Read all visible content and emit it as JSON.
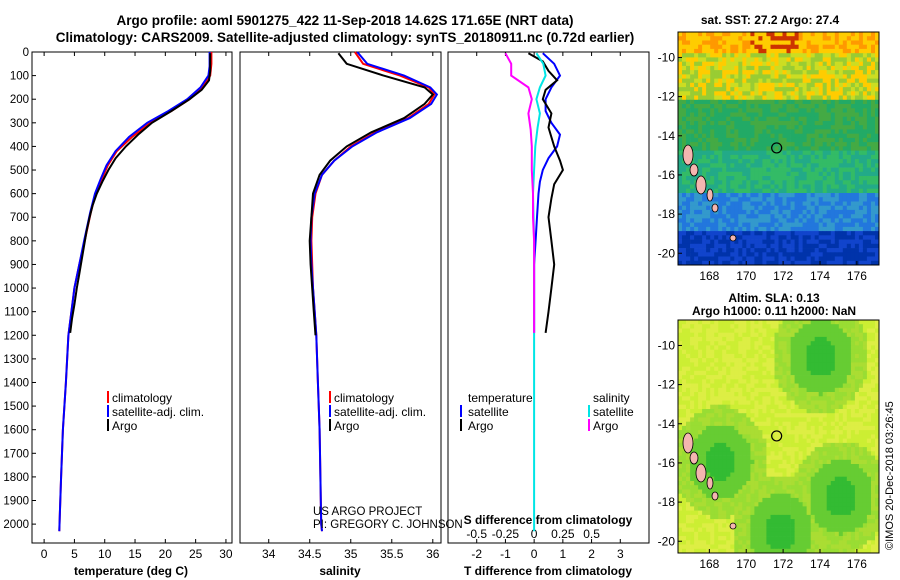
{
  "title": {
    "line1": "Argo profile: aoml 5901275_422 11-Sep-2018 14.62S 171.65E (NRT data)",
    "line2": "Climatology: CARS2009. Satellite-adjusted climatology: synTS_20180911.nc (0.72d earlier)"
  },
  "colors": {
    "climatology": "#ff0000",
    "satellite": "#0000ff",
    "argo": "#000000",
    "sat_salinity": "#00e5e5",
    "argo_salinity": "#ff00ff"
  },
  "chart_data": [
    {
      "type": "line",
      "title": "",
      "xlabel": "temperature (deg C)",
      "ylabel": "",
      "xlim": [
        -2,
        31
      ],
      "ylim": [
        2080,
        0
      ],
      "xticks": [
        0,
        5,
        10,
        15,
        20,
        25,
        30
      ],
      "yticks": [
        0,
        100,
        200,
        300,
        400,
        500,
        600,
        700,
        800,
        900,
        1000,
        1100,
        1200,
        1300,
        1400,
        1500,
        1600,
        1700,
        1800,
        1900,
        2000
      ],
      "legend": {
        "entries": [
          "climatology",
          "satellite-adj. clim.",
          "Argo"
        ],
        "placement": "lower-center"
      },
      "series": [
        {
          "name": "climatology",
          "color": "#ff0000",
          "points": [
            [
              27.6,
              0
            ],
            [
              27.6,
              50
            ],
            [
              27.4,
              100
            ],
            [
              26,
              150
            ],
            [
              24,
              200
            ],
            [
              21,
              250
            ],
            [
              17.5,
              300
            ],
            [
              14.5,
              360
            ],
            [
              12,
              420
            ],
            [
              10.5,
              480
            ],
            [
              9.5,
              540
            ],
            [
              8.5,
              600
            ],
            [
              7.7,
              680
            ],
            [
              6.7,
              800
            ],
            [
              5.8,
              900
            ],
            [
              5,
              1000
            ],
            [
              4.5,
              1100
            ],
            [
              4,
              1200
            ],
            [
              3.6,
              1400
            ],
            [
              3.1,
              1600
            ],
            [
              2.8,
              1800
            ],
            [
              2.6,
              1950
            ],
            [
              2.5,
              2030
            ]
          ]
        },
        {
          "name": "satellite-adj. clim.",
          "color": "#0000ff",
          "points": [
            [
              27.3,
              0
            ],
            [
              27.3,
              60
            ],
            [
              27.1,
              100
            ],
            [
              25.8,
              150
            ],
            [
              23.6,
              200
            ],
            [
              20.5,
              250
            ],
            [
              17,
              300
            ],
            [
              14,
              360
            ],
            [
              11.8,
              420
            ],
            [
              10.3,
              480
            ],
            [
              9.3,
              540
            ],
            [
              8.4,
              600
            ],
            [
              7.6,
              680
            ],
            [
              6.6,
              800
            ],
            [
              5.8,
              900
            ],
            [
              5,
              1000
            ],
            [
              4.5,
              1100
            ],
            [
              4,
              1200
            ],
            [
              3.6,
              1400
            ],
            [
              3.1,
              1600
            ],
            [
              2.8,
              1800
            ],
            [
              2.6,
              1950
            ],
            [
              2.5,
              2030
            ]
          ]
        },
        {
          "name": "Argo",
          "color": "#000000",
          "points": [
            [
              27.4,
              5
            ],
            [
              27.4,
              80
            ],
            [
              27.2,
              120
            ],
            [
              26,
              160
            ],
            [
              24,
              200
            ],
            [
              21,
              250
            ],
            [
              17.8,
              300
            ],
            [
              15.5,
              350
            ],
            [
              13.5,
              400
            ],
            [
              11.8,
              450
            ],
            [
              10.6,
              500
            ],
            [
              9.6,
              550
            ],
            [
              8.7,
              600
            ],
            [
              8,
              650
            ],
            [
              7.5,
              700
            ],
            [
              7,
              760
            ],
            [
              6.6,
              820
            ],
            [
              6.2,
              880
            ],
            [
              5.8,
              940
            ],
            [
              5.4,
              1000
            ],
            [
              5,
              1070
            ],
            [
              4.6,
              1130
            ],
            [
              4.3,
              1190
            ]
          ]
        }
      ]
    },
    {
      "type": "line",
      "xlabel": "salinity",
      "xlim": [
        33.65,
        36.1
      ],
      "ylim": [
        2080,
        0
      ],
      "xticks": [
        34,
        34.5,
        35,
        35.5,
        36
      ],
      "tick_labels": [
        "34",
        "34.5",
        "35",
        "35.5",
        "36"
      ],
      "legend": {
        "entries": [
          "climatology",
          "satellite-adj. clim.",
          "Argo"
        ],
        "placement": "lower-center"
      },
      "series": [
        {
          "name": "climatology",
          "color": "#ff0000",
          "points": [
            [
              35.05,
              0
            ],
            [
              35.15,
              50
            ],
            [
              35.6,
              100
            ],
            [
              35.95,
              150
            ],
            [
              36.02,
              180
            ],
            [
              35.95,
              220
            ],
            [
              35.7,
              280
            ],
            [
              35.3,
              340
            ],
            [
              35,
              400
            ],
            [
              34.8,
              460
            ],
            [
              34.65,
              520
            ],
            [
              34.57,
              600
            ],
            [
              34.53,
              700
            ],
            [
              34.52,
              800
            ],
            [
              34.53,
              900
            ],
            [
              34.54,
              1000
            ],
            [
              34.56,
              1100
            ],
            [
              34.58,
              1200
            ],
            [
              34.6,
              1400
            ],
            [
              34.62,
              1600
            ],
            [
              34.63,
              1800
            ],
            [
              34.64,
              2000
            ],
            [
              34.65,
              2030
            ]
          ]
        },
        {
          "name": "satellite-adj. clim.",
          "color": "#0000ff",
          "points": [
            [
              35.08,
              0
            ],
            [
              35.2,
              50
            ],
            [
              35.65,
              100
            ],
            [
              35.97,
              150
            ],
            [
              36.05,
              180
            ],
            [
              35.98,
              220
            ],
            [
              35.72,
              280
            ],
            [
              35.32,
              340
            ],
            [
              35.02,
              400
            ],
            [
              34.8,
              460
            ],
            [
              34.65,
              520
            ],
            [
              34.56,
              600
            ],
            [
              34.52,
              700
            ],
            [
              34.51,
              800
            ],
            [
              34.52,
              900
            ],
            [
              34.54,
              1000
            ],
            [
              34.56,
              1100
            ],
            [
              34.58,
              1200
            ],
            [
              34.6,
              1400
            ],
            [
              34.62,
              1600
            ],
            [
              34.63,
              1800
            ],
            [
              34.64,
              2000
            ],
            [
              34.65,
              2030
            ]
          ]
        },
        {
          "name": "Argo",
          "color": "#000000",
          "points": [
            [
              34.85,
              5
            ],
            [
              34.95,
              50
            ],
            [
              35.4,
              100
            ],
            [
              35.9,
              150
            ],
            [
              36,
              180
            ],
            [
              35.9,
              220
            ],
            [
              35.65,
              280
            ],
            [
              35.25,
              340
            ],
            [
              34.95,
              400
            ],
            [
              34.75,
              460
            ],
            [
              34.62,
              520
            ],
            [
              34.54,
              600
            ],
            [
              34.52,
              700
            ],
            [
              34.5,
              800
            ],
            [
              34.51,
              900
            ],
            [
              34.53,
              1000
            ],
            [
              34.55,
              1100
            ],
            [
              34.57,
              1200
            ]
          ]
        }
      ]
    },
    {
      "type": "line",
      "xlabel": "T difference from climatology",
      "x2label": "S difference from climatology",
      "xlim": [
        -3,
        4
      ],
      "x2lim": [
        -0.75,
        1
      ],
      "ylim": [
        2080,
        0
      ],
      "xticks": [
        -2,
        -1,
        0,
        1,
        2,
        3
      ],
      "tick_labels": [
        "-2",
        "-1",
        "0",
        "1",
        "2",
        "3"
      ],
      "x2ticks": [
        -0.5,
        -0.25,
        0,
        0.25,
        0.5
      ],
      "x2tick_labels": [
        "-0.5",
        "-0.25",
        "0",
        "0.25",
        "0.5"
      ],
      "legend": {
        "temperature_header": "temperature",
        "salinity_header": "salinity",
        "entries": [
          "satellite",
          "Argo",
          "satellite",
          "Argo"
        ],
        "placement": "lower-center"
      },
      "series": [
        {
          "name": "T satellite",
          "color": "#0000ff",
          "axis": "x",
          "points": [
            [
              0.3,
              5
            ],
            [
              0.7,
              50
            ],
            [
              0.9,
              100
            ],
            [
              0.6,
              150
            ],
            [
              0.4,
              200
            ],
            [
              0.4,
              250
            ],
            [
              0.6,
              300
            ],
            [
              0.9,
              350
            ],
            [
              0.8,
              400
            ],
            [
              0.5,
              450
            ],
            [
              0.3,
              500
            ],
            [
              0.2,
              550
            ],
            [
              0.15,
              600
            ],
            [
              0.1,
              700
            ],
            [
              0.05,
              800
            ],
            [
              0,
              900
            ],
            [
              0,
              1000
            ],
            [
              0,
              1100
            ],
            [
              0,
              1190
            ]
          ]
        },
        {
          "name": "T Argo",
          "color": "#000000",
          "axis": "x",
          "points": [
            [
              -0.2,
              5
            ],
            [
              0.3,
              40
            ],
            [
              0.5,
              80
            ],
            [
              0.8,
              120
            ],
            [
              0.4,
              160
            ],
            [
              0.3,
              200
            ],
            [
              0.6,
              260
            ],
            [
              0.5,
              320
            ],
            [
              0.7,
              400
            ],
            [
              0.9,
              460
            ],
            [
              1,
              500
            ],
            [
              0.7,
              560
            ],
            [
              0.6,
              620
            ],
            [
              0.5,
              700
            ],
            [
              0.6,
              800
            ],
            [
              0.7,
              900
            ],
            [
              0.6,
              1000
            ],
            [
              0.5,
              1100
            ],
            [
              0.4,
              1190
            ]
          ]
        },
        {
          "name": "S satellite",
          "color": "#00e5e5",
          "axis": "x2",
          "points": [
            [
              0.02,
              5
            ],
            [
              0.08,
              50
            ],
            [
              0.1,
              100
            ],
            [
              0.05,
              150
            ],
            [
              0.02,
              200
            ],
            [
              0.05,
              260
            ],
            [
              0.03,
              320
            ],
            [
              0.01,
              400
            ],
            [
              0,
              500
            ],
            [
              -0.01,
              600
            ],
            [
              0,
              800
            ],
            [
              0,
              1000
            ],
            [
              0,
              1200
            ],
            [
              0,
              1400
            ],
            [
              0,
              1600
            ],
            [
              0,
              1800
            ],
            [
              0,
              2030
            ]
          ]
        },
        {
          "name": "S Argo",
          "color": "#ff00ff",
          "axis": "x2",
          "points": [
            [
              -0.25,
              5
            ],
            [
              -0.2,
              50
            ],
            [
              -0.2,
              100
            ],
            [
              -0.05,
              150
            ],
            [
              -0.02,
              200
            ],
            [
              -0.05,
              260
            ],
            [
              -0.03,
              330
            ],
            [
              -0.02,
              400
            ],
            [
              -0.02,
              500
            ],
            [
              -0.01,
              600
            ],
            [
              -0.01,
              700
            ],
            [
              0,
              800
            ],
            [
              0,
              900
            ],
            [
              0,
              1000
            ],
            [
              0,
              1100
            ],
            [
              0,
              1190
            ]
          ]
        }
      ]
    },
    {
      "type": "heatmap",
      "title": "sat. SST: 27.2 Argo: 27.4",
      "xlim": [
        166.3,
        177.2
      ],
      "ylim": [
        -20.6,
        -8.7
      ],
      "xticks": [
        168,
        170,
        172,
        174,
        176
      ],
      "yticks": [
        -10,
        -12,
        -14,
        -16,
        -18,
        -20
      ],
      "profile_location": [
        171.65,
        -14.62
      ]
    },
    {
      "type": "heatmap",
      "title": "Altim. SLA: 0.13",
      "subtitle": "Argo h1000: 0.11 h2000: NaN",
      "xlim": [
        166.3,
        177.2
      ],
      "ylim": [
        -20.6,
        -8.7
      ],
      "xticks": [
        168,
        170,
        172,
        174,
        176
      ],
      "yticks": [
        -10,
        -12,
        -14,
        -16,
        -18,
        -20
      ],
      "profile_location": [
        171.65,
        -14.62
      ]
    }
  ],
  "credits": {
    "project": "US ARGO PROJECT",
    "pi": "PI: GREGORY C. JOHNSON",
    "imos": "©IMOS 20-Dec-2018 03:26:45"
  }
}
